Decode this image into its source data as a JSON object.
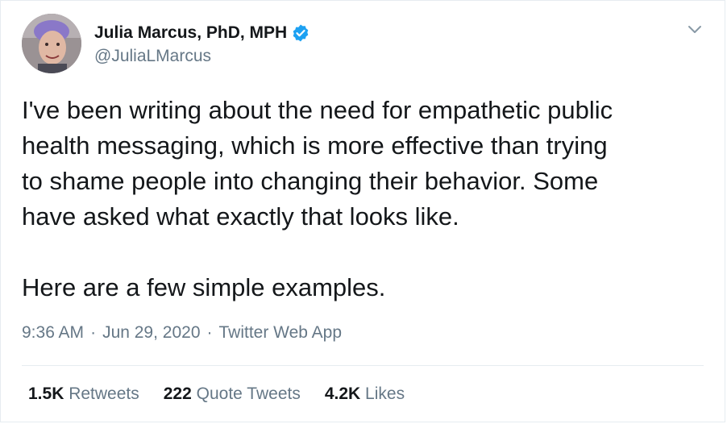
{
  "author": {
    "display_name": "Julia Marcus, PhD, MPH",
    "handle": "@JuliaLMarcus",
    "verified": true,
    "verified_color": "#1da1f2"
  },
  "tweet": {
    "text": "I've been writing about the need for empathetic public\nhealth messaging, which is more effective than trying\nto shame people into changing their behavior. Some\nhave asked what exactly that looks like.\n\nHere are a few simple examples.",
    "time": "9:36 AM",
    "date": "Jun 29, 2020",
    "source": "Twitter Web App",
    "separator": "·"
  },
  "stats": {
    "retweets_count": "1.5K",
    "retweets_label": "Retweets",
    "quotes_count": "222",
    "quotes_label": "Quote Tweets",
    "likes_count": "4.2K",
    "likes_label": "Likes"
  },
  "icons": {
    "menu": "chevron-down-icon",
    "verified": "verified-badge-icon",
    "avatar": "avatar"
  }
}
